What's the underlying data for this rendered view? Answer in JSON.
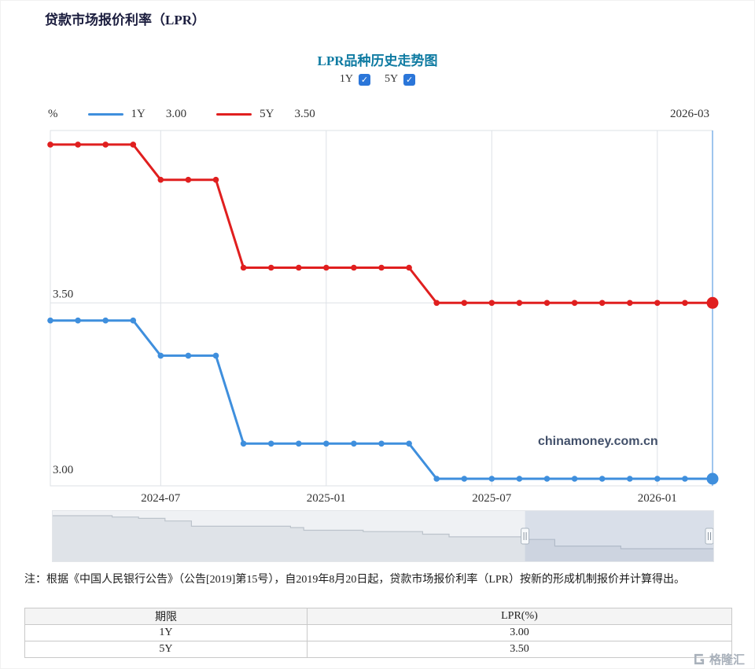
{
  "page_title": "贷款市场报价利率（LPR）",
  "chart": {
    "title": "LPR品种历史走势图",
    "unit_label": "%",
    "latest_date_label": "2026-03",
    "watermark": "chinamoney.com.cn",
    "checkboxes": [
      {
        "label": "1Y",
        "checked": true
      },
      {
        "label": "5Y",
        "checked": true
      }
    ],
    "legend": [
      {
        "label": "1Y",
        "value": "3.00",
        "color": "#3f8fdd"
      },
      {
        "label": "5Y",
        "value": "3.50",
        "color": "#e01f1f"
      }
    ]
  },
  "chart_data": {
    "type": "line",
    "title": "LPR品种历史走势图",
    "xlabel": "",
    "ylabel": "%",
    "ylim": [
      2.98,
      3.99
    ],
    "grid": true,
    "legend_position": "top",
    "x": [
      "2024-03",
      "2024-04",
      "2024-05",
      "2024-06",
      "2024-07",
      "2024-08",
      "2024-09",
      "2024-10",
      "2024-11",
      "2024-12",
      "2025-01",
      "2025-02",
      "2025-03",
      "2025-04",
      "2025-05",
      "2025-06",
      "2025-07",
      "2025-08",
      "2025-09",
      "2025-10",
      "2025-11",
      "2025-12",
      "2026-01",
      "2026-02",
      "2026-03"
    ],
    "series": [
      {
        "name": "5Y",
        "color": "#e01f1f",
        "values": [
          3.95,
          3.95,
          3.95,
          3.95,
          3.85,
          3.85,
          3.85,
          3.6,
          3.6,
          3.6,
          3.6,
          3.6,
          3.6,
          3.6,
          3.5,
          3.5,
          3.5,
          3.5,
          3.5,
          3.5,
          3.5,
          3.5,
          3.5,
          3.5,
          3.5
        ]
      },
      {
        "name": "1Y",
        "color": "#3f8fdd",
        "values": [
          3.45,
          3.45,
          3.45,
          3.45,
          3.35,
          3.35,
          3.35,
          3.1,
          3.1,
          3.1,
          3.1,
          3.1,
          3.1,
          3.1,
          3.0,
          3.0,
          3.0,
          3.0,
          3.0,
          3.0,
          3.0,
          3.0,
          3.0,
          3.0,
          3.0
        ]
      }
    ],
    "x_ticks": [
      {
        "index": 4,
        "label": "2024-07"
      },
      {
        "index": 10,
        "label": "2025-01"
      },
      {
        "index": 16,
        "label": "2025-07"
      },
      {
        "index": 22,
        "label": "2026-01"
      }
    ],
    "y_ticks": [
      {
        "value": 3.5,
        "label": "3.50",
        "grid": true
      },
      {
        "value": 3.0,
        "label": "3.00",
        "grid": false
      }
    ]
  },
  "navigator": {
    "value_range": [
      3.0,
      4.25
    ],
    "selection": [
      0.715,
      1.0
    ],
    "points": [
      {
        "x": 0.0,
        "v": 4.25
      },
      {
        "x": 0.09,
        "v": 4.2
      },
      {
        "x": 0.13,
        "v": 4.15
      },
      {
        "x": 0.17,
        "v": 4.05
      },
      {
        "x": 0.21,
        "v": 3.85
      },
      {
        "x": 0.36,
        "v": 3.8
      },
      {
        "x": 0.38,
        "v": 3.7
      },
      {
        "x": 0.47,
        "v": 3.65
      },
      {
        "x": 0.56,
        "v": 3.55
      },
      {
        "x": 0.6,
        "v": 3.45
      },
      {
        "x": 0.72,
        "v": 3.35
      },
      {
        "x": 0.76,
        "v": 3.1
      },
      {
        "x": 0.86,
        "v": 3.0
      },
      {
        "x": 1.0,
        "v": 3.0
      }
    ]
  },
  "note": "注：根据《中国人民银行公告》（公告[2019]第15号），自2019年8月20日起，贷款市场报价利率（LPR）按新的形成机制报价并计算得出。",
  "table": {
    "headers": [
      "期限",
      "LPR(%)"
    ],
    "rows": [
      [
        "1Y",
        "3.00"
      ],
      [
        "5Y",
        "3.50"
      ]
    ]
  },
  "footer": {
    "logo_text": "格隆汇"
  },
  "colors": {
    "chart_title": "#0f7ba2",
    "checkbox": "#2b76d9",
    "grid": "#dde1e6",
    "crosshair": "#7fb2e8",
    "nav_area": "#dfe3e8",
    "nav_line": "#bcc3cb",
    "nav_selection": "rgba(140,158,195,0.22)"
  }
}
